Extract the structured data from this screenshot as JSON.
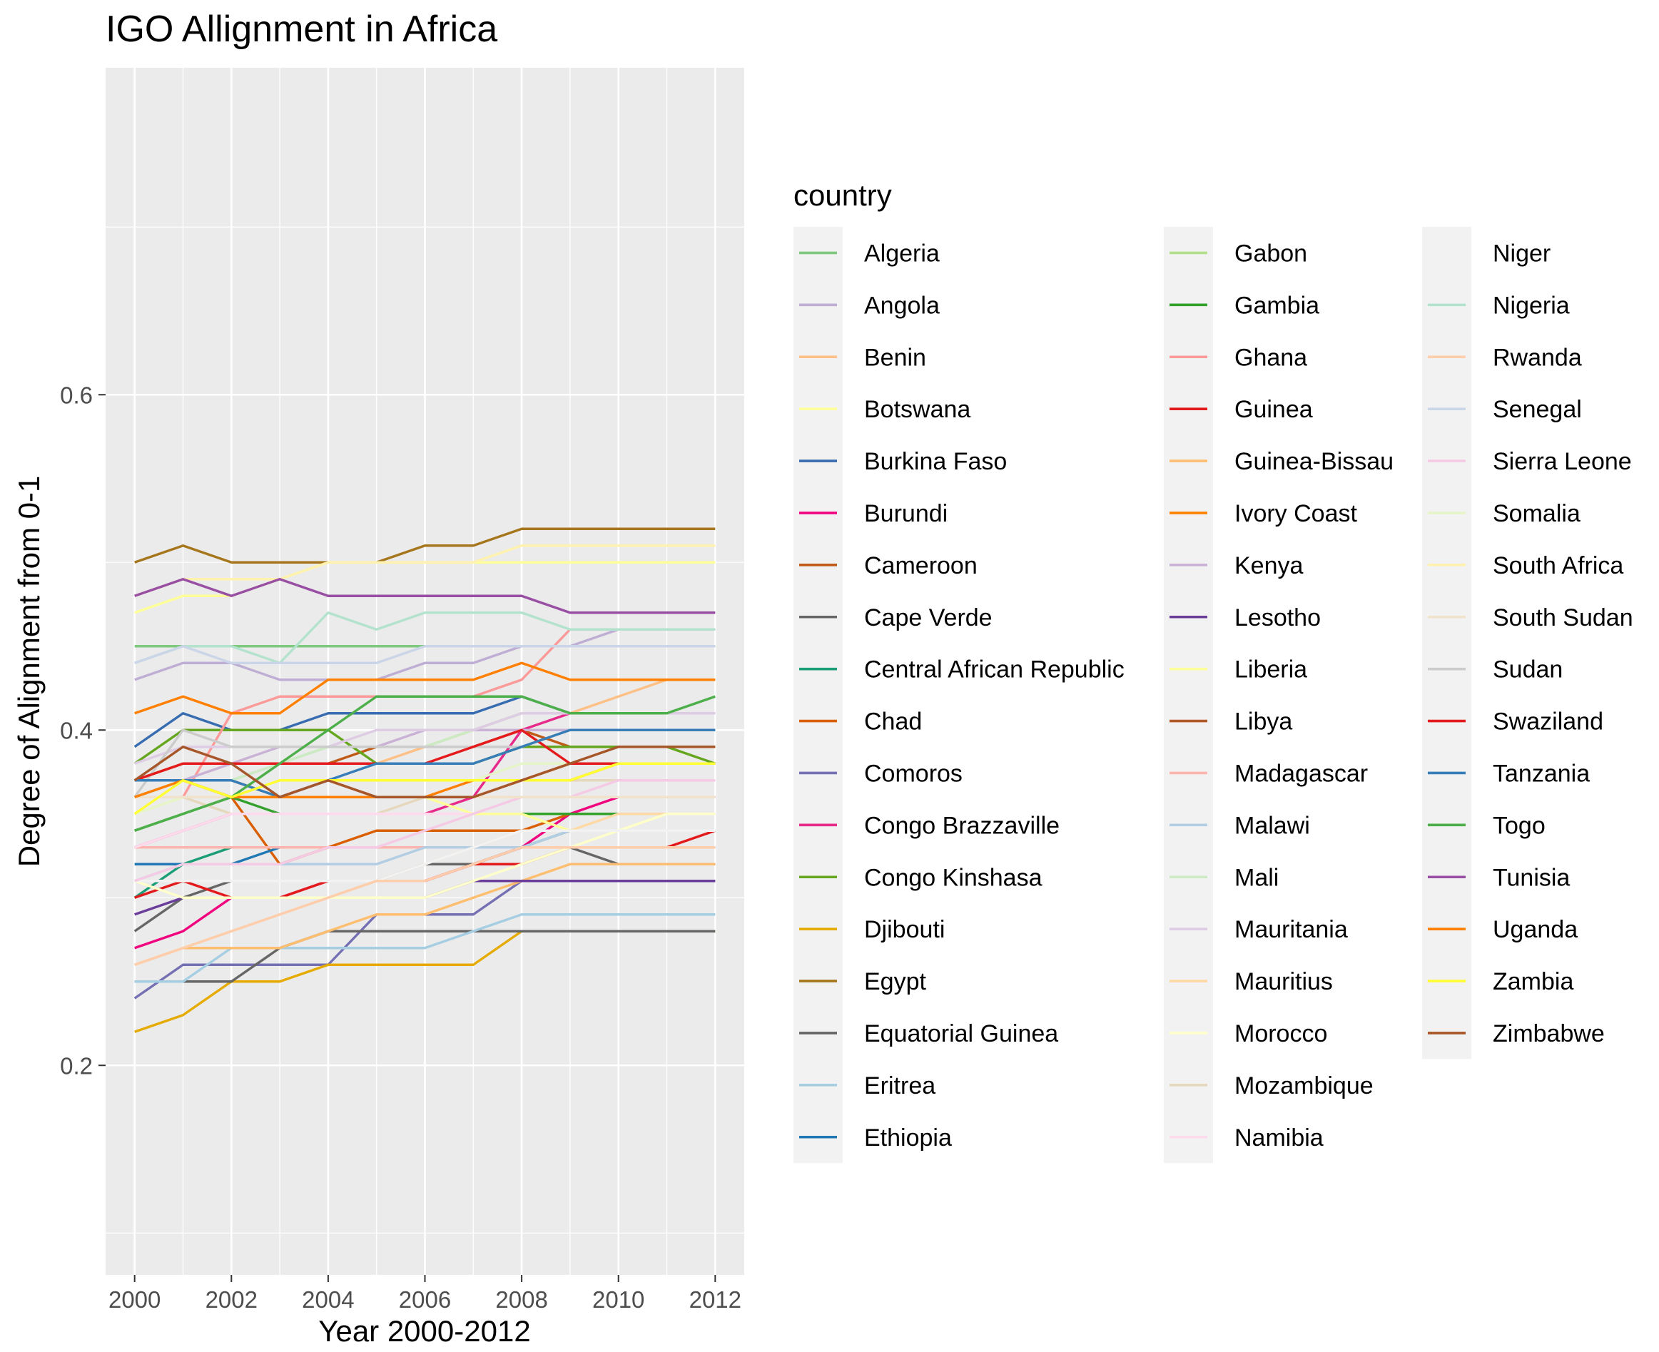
{
  "chart_data": {
    "type": "line",
    "title": "IGO Allignment in Africa",
    "xlabel": "Year 2000-2012",
    "ylabel": "Degree of Alignment from 0-1",
    "x": [
      2000,
      2001,
      2002,
      2003,
      2004,
      2005,
      2006,
      2007,
      2008,
      2009,
      2010,
      2011,
      2012
    ],
    "xticks": [
      2000,
      2002,
      2004,
      2006,
      2008,
      2010,
      2012
    ],
    "xtick_labels": [
      "2000",
      "2002",
      "2004",
      "2006",
      "2008",
      "2010",
      "2012"
    ],
    "xlim": [
      1999.4,
      2012.6
    ],
    "yticks": [
      0.2,
      0.4,
      0.6
    ],
    "ytick_labels": [
      "0.2",
      "0.4",
      "0.6"
    ],
    "ylim": [
      0.075,
      0.795
    ],
    "grid": true,
    "legend_title": "country",
    "legend_position": "right",
    "series": [
      {
        "name": "Algeria",
        "color": "#7FC97F",
        "values": [
          0.45,
          0.45,
          0.45,
          0.45,
          0.45,
          0.45,
          0.45,
          0.45,
          0.45,
          0.45,
          0.45,
          0.45,
          0.45
        ]
      },
      {
        "name": "Angola",
        "color": "#BEAED4",
        "values": [
          0.43,
          0.44,
          0.44,
          0.43,
          0.43,
          0.43,
          0.44,
          0.44,
          0.45,
          0.45,
          0.46,
          0.46,
          0.46
        ]
      },
      {
        "name": "Benin",
        "color": "#FDC086",
        "values": [
          0.37,
          0.38,
          0.38,
          0.38,
          0.38,
          0.38,
          0.39,
          0.4,
          0.41,
          0.41,
          0.42,
          0.43,
          0.43
        ]
      },
      {
        "name": "Botswana",
        "color": "#FFFF99",
        "values": [
          0.47,
          0.48,
          0.48,
          0.49,
          0.5,
          0.5,
          0.5,
          0.5,
          0.5,
          0.5,
          0.5,
          0.5,
          0.5
        ]
      },
      {
        "name": "Burkina Faso",
        "color": "#386CB0",
        "values": [
          0.39,
          0.41,
          0.4,
          0.4,
          0.41,
          0.41,
          0.41,
          0.41,
          0.42,
          0.41,
          0.41,
          0.41,
          0.41
        ]
      },
      {
        "name": "Burundi",
        "color": "#F0027F",
        "values": [
          0.27,
          0.28,
          0.3,
          0.3,
          0.31,
          0.31,
          0.31,
          0.32,
          0.33,
          0.35,
          0.36,
          0.36,
          0.36
        ]
      },
      {
        "name": "Cameroon",
        "color": "#BF5B17",
        "values": [
          0.37,
          0.38,
          0.38,
          0.38,
          0.38,
          0.39,
          0.39,
          0.39,
          0.4,
          0.39,
          0.39,
          0.39,
          0.39
        ]
      },
      {
        "name": "Cape Verde",
        "color": "#666666",
        "values": [
          0.28,
          0.3,
          0.31,
          0.31,
          0.31,
          0.31,
          0.32,
          0.32,
          0.33,
          0.33,
          0.32,
          0.32,
          0.32
        ]
      },
      {
        "name": "Central African Republic",
        "color": "#1B9E77",
        "values": [
          0.3,
          0.32,
          0.33,
          0.33,
          0.33,
          0.33,
          0.33,
          0.33,
          0.33,
          0.34,
          0.34,
          0.34,
          0.34
        ]
      },
      {
        "name": "Chad",
        "color": "#D95F02",
        "values": [
          0.37,
          0.37,
          0.36,
          0.32,
          0.33,
          0.34,
          0.34,
          0.34,
          0.34,
          0.35,
          0.35,
          0.35,
          0.35
        ]
      },
      {
        "name": "Comoros",
        "color": "#7570B3",
        "values": [
          0.24,
          0.26,
          0.26,
          0.26,
          0.26,
          0.29,
          0.29,
          0.29,
          0.31,
          0.31,
          0.31,
          0.31,
          0.31
        ]
      },
      {
        "name": "Congo Brazzaville",
        "color": "#E7298A",
        "values": [
          0.33,
          0.34,
          0.35,
          0.35,
          0.35,
          0.35,
          0.35,
          0.36,
          0.4,
          0.41,
          0.41,
          0.41,
          0.41
        ]
      },
      {
        "name": "Congo Kinshasa",
        "color": "#66A61E",
        "values": [
          0.38,
          0.4,
          0.4,
          0.4,
          0.4,
          0.38,
          0.38,
          0.38,
          0.39,
          0.39,
          0.39,
          0.39,
          0.38
        ]
      },
      {
        "name": "Djibouti",
        "color": "#E6AB02",
        "values": [
          0.22,
          0.23,
          0.25,
          0.25,
          0.26,
          0.26,
          0.26,
          0.26,
          0.28,
          0.28,
          0.28,
          0.28,
          0.28
        ]
      },
      {
        "name": "Egypt",
        "color": "#A6761D",
        "values": [
          0.5,
          0.51,
          0.5,
          0.5,
          0.5,
          0.5,
          0.51,
          0.51,
          0.52,
          0.52,
          0.52,
          0.52,
          0.52
        ]
      },
      {
        "name": "Equatorial Guinea",
        "color": "#666666",
        "values": [
          0.25,
          0.25,
          0.25,
          0.27,
          0.28,
          0.28,
          0.28,
          0.28,
          0.28,
          0.28,
          0.28,
          0.28,
          0.28
        ]
      },
      {
        "name": "Eritrea",
        "color": "#A6CEE3",
        "values": [
          0.25,
          0.25,
          0.27,
          0.27,
          0.27,
          0.27,
          0.27,
          0.28,
          0.29,
          0.29,
          0.29,
          0.29,
          0.29
        ]
      },
      {
        "name": "Ethiopia",
        "color": "#1F78B4",
        "values": [
          0.32,
          0.32,
          0.32,
          0.33,
          0.33,
          0.33,
          0.33,
          0.33,
          0.33,
          0.33,
          0.33,
          0.33,
          0.33
        ]
      },
      {
        "name": "Gabon",
        "color": "#B2DF8A",
        "values": [
          0.36,
          0.37,
          0.37,
          0.38,
          0.39,
          0.39,
          0.39,
          0.4,
          0.41,
          0.41,
          0.41,
          0.41,
          0.41
        ]
      },
      {
        "name": "Gambia",
        "color": "#33A02C",
        "values": [
          0.34,
          0.35,
          0.36,
          0.35,
          0.35,
          0.35,
          0.35,
          0.35,
          0.35,
          0.35,
          0.35,
          0.35,
          0.35
        ]
      },
      {
        "name": "Ghana",
        "color": "#FB9A99",
        "values": [
          0.36,
          0.36,
          0.41,
          0.42,
          0.42,
          0.42,
          0.42,
          0.42,
          0.43,
          0.46,
          0.46,
          0.46,
          0.46
        ]
      },
      {
        "name": "Guinea",
        "color": "#E31A1C",
        "values": [
          0.3,
          0.31,
          0.3,
          0.3,
          0.31,
          0.31,
          0.31,
          0.32,
          0.32,
          0.33,
          0.33,
          0.33,
          0.34
        ]
      },
      {
        "name": "Guinea-Bissau",
        "color": "#FDBF6F",
        "values": [
          0.26,
          0.27,
          0.27,
          0.27,
          0.28,
          0.29,
          0.29,
          0.3,
          0.31,
          0.32,
          0.32,
          0.32,
          0.32
        ]
      },
      {
        "name": "Ivory Coast",
        "color": "#FF7F00",
        "values": [
          0.41,
          0.42,
          0.41,
          0.41,
          0.43,
          0.43,
          0.43,
          0.43,
          0.44,
          0.43,
          0.43,
          0.43,
          0.43
        ]
      },
      {
        "name": "Kenya",
        "color": "#CAB2D6",
        "values": [
          0.36,
          0.37,
          0.38,
          0.39,
          0.39,
          0.39,
          0.4,
          0.4,
          0.4,
          0.4,
          0.4,
          0.4,
          0.4
        ]
      },
      {
        "name": "Lesotho",
        "color": "#6A3D9A",
        "values": [
          0.29,
          0.3,
          0.3,
          0.3,
          0.3,
          0.3,
          0.3,
          0.31,
          0.31,
          0.31,
          0.31,
          0.31,
          0.31
        ]
      },
      {
        "name": "Liberia",
        "color": "#FFFF99",
        "values": [
          0.35,
          0.36,
          0.36,
          0.36,
          0.36,
          0.36,
          0.36,
          0.35,
          0.35,
          0.34,
          0.34,
          0.35,
          0.35
        ]
      },
      {
        "name": "Libya",
        "color": "#B15928",
        "values": [
          0.37,
          0.37,
          0.37,
          0.36,
          0.37,
          0.36,
          0.36,
          0.36,
          0.37,
          0.38,
          0.38,
          0.38,
          0.38
        ]
      },
      {
        "name": "Madagascar",
        "color": "#FBB4AE",
        "values": [
          0.33,
          0.33,
          0.33,
          0.33,
          0.33,
          0.33,
          0.33,
          0.33,
          0.34,
          0.34,
          0.34,
          0.34,
          0.34
        ]
      },
      {
        "name": "Malawi",
        "color": "#B3CDE3",
        "values": [
          0.31,
          0.32,
          0.32,
          0.32,
          0.32,
          0.32,
          0.33,
          0.33,
          0.33,
          0.34,
          0.34,
          0.34,
          0.34
        ]
      },
      {
        "name": "Mali",
        "color": "#CCEBC5",
        "values": [
          0.36,
          0.37,
          0.37,
          0.38,
          0.39,
          0.39,
          0.39,
          0.4,
          0.41,
          0.41,
          0.41,
          0.41,
          0.41
        ]
      },
      {
        "name": "Mauritania",
        "color": "#DECBE4",
        "values": [
          0.38,
          0.39,
          0.39,
          0.39,
          0.39,
          0.4,
          0.4,
          0.4,
          0.41,
          0.41,
          0.41,
          0.41,
          0.41
        ]
      },
      {
        "name": "Mauritius",
        "color": "#FED9A6",
        "values": [
          0.26,
          0.27,
          0.28,
          0.29,
          0.3,
          0.31,
          0.32,
          0.33,
          0.34,
          0.34,
          0.35,
          0.35,
          0.35
        ]
      },
      {
        "name": "Morocco",
        "color": "#FFFFCC",
        "values": [
          0.31,
          0.3,
          0.3,
          0.3,
          0.3,
          0.3,
          0.3,
          0.31,
          0.32,
          0.33,
          0.34,
          0.35,
          0.35
        ]
      },
      {
        "name": "Mozambique",
        "color": "#E5D8BD",
        "values": [
          0.36,
          0.36,
          0.35,
          0.35,
          0.35,
          0.35,
          0.36,
          0.36,
          0.37,
          0.37,
          0.37,
          0.37,
          0.37
        ]
      },
      {
        "name": "Namibia",
        "color": "#FDDAEC",
        "values": [
          0.33,
          0.34,
          0.35,
          0.35,
          0.35,
          0.35,
          0.35,
          0.35,
          0.36,
          0.36,
          0.37,
          0.37,
          0.37
        ]
      },
      {
        "name": "Niger",
        "color": "#F2F2F2",
        "values": [
          0.31,
          0.31,
          0.31,
          0.31,
          0.31,
          0.31,
          0.32,
          0.33,
          0.34,
          0.34,
          0.34,
          0.34,
          0.34
        ]
      },
      {
        "name": "Nigeria",
        "color": "#B3E2CD",
        "values": [
          0.44,
          0.45,
          0.45,
          0.44,
          0.47,
          0.46,
          0.47,
          0.47,
          0.47,
          0.46,
          0.46,
          0.46,
          0.46
        ]
      },
      {
        "name": "Rwanda",
        "color": "#FDCDAC",
        "values": [
          0.26,
          0.27,
          0.28,
          0.29,
          0.3,
          0.31,
          0.31,
          0.32,
          0.33,
          0.33,
          0.33,
          0.33,
          0.33
        ]
      },
      {
        "name": "Senegal",
        "color": "#CBD5E8",
        "values": [
          0.44,
          0.45,
          0.44,
          0.44,
          0.44,
          0.44,
          0.45,
          0.45,
          0.45,
          0.45,
          0.45,
          0.45,
          0.45
        ]
      },
      {
        "name": "Sierra Leone",
        "color": "#F4CAE4",
        "values": [
          0.31,
          0.32,
          0.32,
          0.32,
          0.33,
          0.33,
          0.34,
          0.35,
          0.36,
          0.36,
          0.37,
          0.37,
          0.37
        ]
      },
      {
        "name": "Somalia",
        "color": "#E6F5C9",
        "values": [
          0.35,
          0.36,
          0.36,
          0.37,
          0.37,
          0.37,
          0.37,
          0.37,
          0.38,
          0.38,
          0.38,
          0.38,
          0.38
        ]
      },
      {
        "name": "South Africa",
        "color": "#FFF2AE",
        "values": [
          0.48,
          0.49,
          0.49,
          0.49,
          0.5,
          0.5,
          0.5,
          0.5,
          0.51,
          0.51,
          0.51,
          0.51,
          0.51
        ]
      },
      {
        "name": "South Sudan",
        "color": "#F1E2CC",
        "values": [
          0.36,
          0.36,
          0.36,
          0.36,
          0.36,
          0.36,
          0.36,
          0.36,
          0.36,
          0.36,
          0.36,
          0.36,
          0.36
        ]
      },
      {
        "name": "Sudan",
        "color": "#CCCCCC",
        "values": [
          0.36,
          0.4,
          0.39,
          0.39,
          0.39,
          0.39,
          0.39,
          0.39,
          0.39,
          0.4,
          0.4,
          0.4,
          0.4
        ]
      },
      {
        "name": "Swaziland",
        "color": "#E41A1C",
        "values": [
          0.37,
          0.38,
          0.38,
          0.38,
          0.38,
          0.38,
          0.38,
          0.39,
          0.4,
          0.38,
          0.38,
          0.38,
          0.38
        ]
      },
      {
        "name": "Tanzania",
        "color": "#377EB8",
        "values": [
          0.37,
          0.37,
          0.37,
          0.36,
          0.37,
          0.38,
          0.38,
          0.38,
          0.39,
          0.4,
          0.4,
          0.4,
          0.4
        ]
      },
      {
        "name": "Togo",
        "color": "#4DAF4A",
        "values": [
          0.34,
          0.35,
          0.36,
          0.38,
          0.4,
          0.42,
          0.42,
          0.42,
          0.42,
          0.41,
          0.41,
          0.41,
          0.42
        ]
      },
      {
        "name": "Tunisia",
        "color": "#984EA3",
        "values": [
          0.48,
          0.49,
          0.48,
          0.49,
          0.48,
          0.48,
          0.48,
          0.48,
          0.48,
          0.47,
          0.47,
          0.47,
          0.47
        ]
      },
      {
        "name": "Uganda",
        "color": "#FF7F00",
        "values": [
          0.36,
          0.37,
          0.36,
          0.36,
          0.36,
          0.36,
          0.36,
          0.37,
          0.37,
          0.37,
          0.38,
          0.38,
          0.38
        ]
      },
      {
        "name": "Zambia",
        "color": "#FFFF33",
        "values": [
          0.35,
          0.37,
          0.36,
          0.37,
          0.37,
          0.37,
          0.37,
          0.37,
          0.37,
          0.37,
          0.38,
          0.38,
          0.38
        ]
      },
      {
        "name": "Zimbabwe",
        "color": "#A65628",
        "values": [
          0.37,
          0.39,
          0.38,
          0.36,
          0.37,
          0.36,
          0.36,
          0.36,
          0.37,
          0.38,
          0.39,
          0.39,
          0.39
        ]
      }
    ]
  }
}
